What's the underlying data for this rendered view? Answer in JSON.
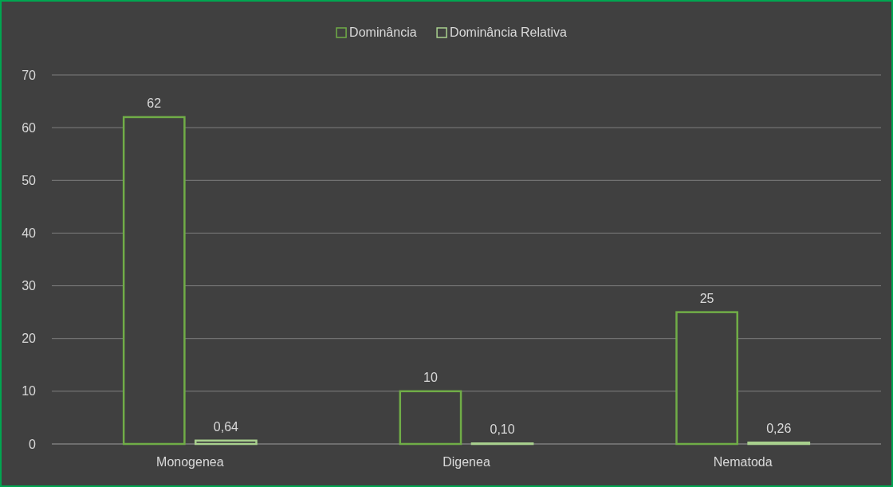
{
  "chart_data": {
    "type": "bar",
    "categories": [
      "Monogenea",
      "Digenea",
      "Nematoda"
    ],
    "series": [
      {
        "name": "Dominância",
        "color": "#70ad47",
        "values": [
          62,
          10,
          25
        ],
        "value_labels": [
          "62",
          "10",
          "25"
        ]
      },
      {
        "name": "Dominância Relativa",
        "color": "#a9d18e",
        "values": [
          0.64,
          0.1,
          0.26
        ],
        "value_labels": [
          "0,64",
          "0,10",
          "0,26"
        ]
      }
    ],
    "ylim": [
      0,
      70
    ],
    "yticks": [
      0,
      10,
      20,
      30,
      40,
      50,
      60,
      70
    ],
    "grid": "y",
    "legend": "top"
  }
}
